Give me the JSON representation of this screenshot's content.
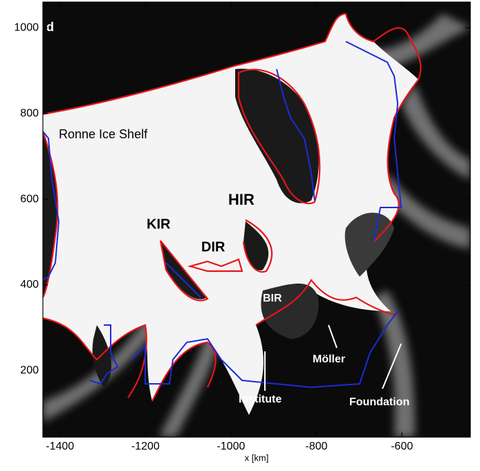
{
  "chart_data": {
    "type": "map",
    "panel_label": "d",
    "x_label": "x [km]",
    "xlim": [
      -1440,
      -440
    ],
    "ylim": [
      45,
      1060
    ],
    "xticks": [
      -1400,
      -1200,
      -1000,
      -800,
      -600
    ],
    "yticks": [
      200,
      400,
      600,
      800,
      1000
    ],
    "annotations": [
      "Ronne Ice Shelf",
      "HIR",
      "KIR",
      "DIR",
      "BIR",
      "Möller",
      "Institute",
      "Foundation"
    ]
  }
}
